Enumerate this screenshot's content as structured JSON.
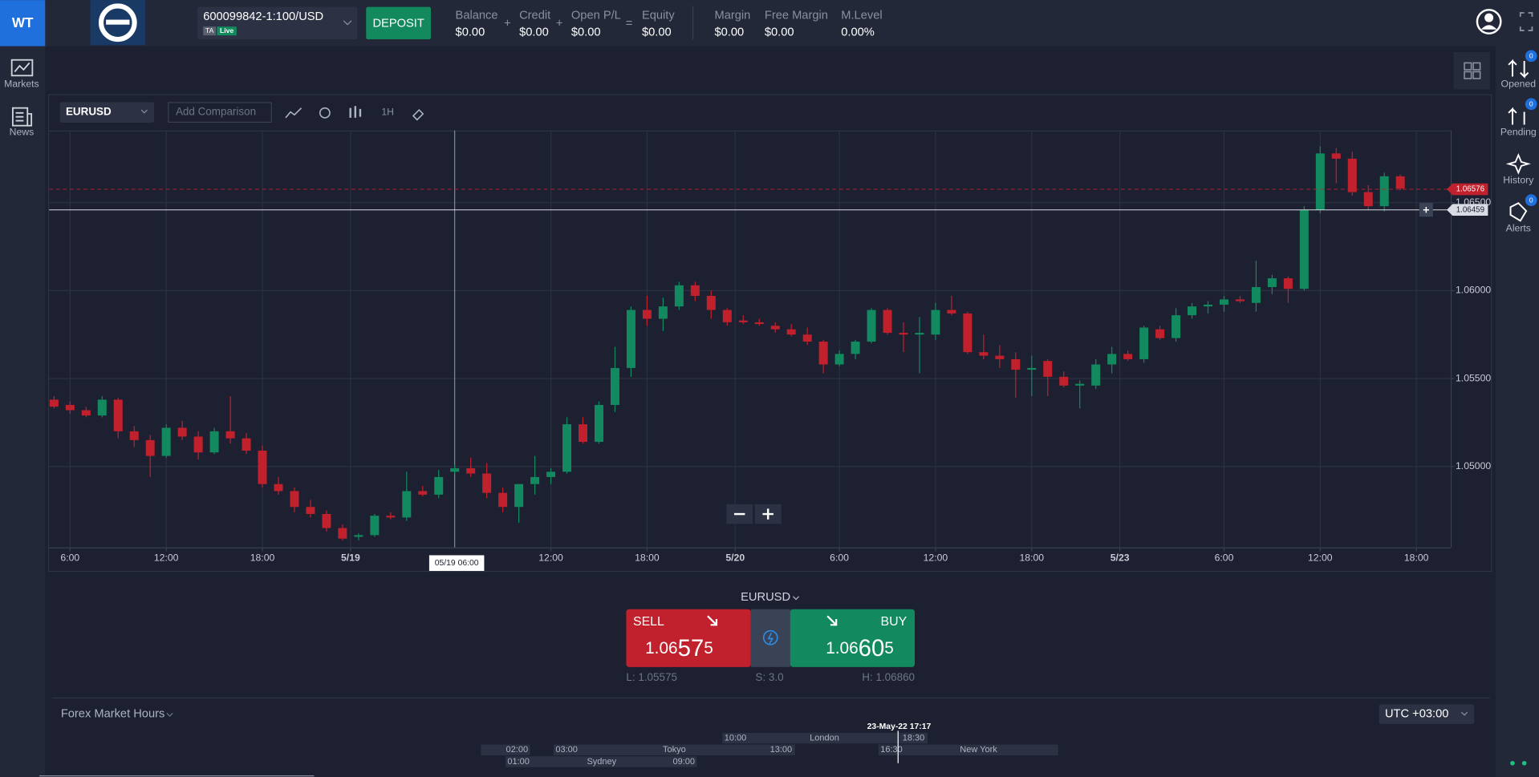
{
  "header": {
    "logo": "WT",
    "account": "600099842-1:100/USD",
    "badges": [
      "TA",
      "Live"
    ],
    "deposit": "DEPOSIT",
    "stats": [
      {
        "label": "Balance",
        "value": "$0.00"
      },
      {
        "label": "Credit",
        "value": "$0.00"
      },
      {
        "label": "Open P/L",
        "value": "$0.00"
      },
      {
        "label": "Equity",
        "value": "$0.00"
      },
      {
        "label": "Margin",
        "value": "$0.00"
      },
      {
        "label": "Free Margin",
        "value": "$0.00"
      },
      {
        "label": "M.Level",
        "value": "0.00%"
      }
    ],
    "operators": [
      "+",
      "+",
      "="
    ]
  },
  "left_nav": [
    "Markets",
    "News"
  ],
  "right_nav": [
    {
      "label": "Opened",
      "count": "0"
    },
    {
      "label": "Pending",
      "count": "0"
    },
    {
      "label": "History"
    },
    {
      "label": "Alerts",
      "count": "0"
    }
  ],
  "toolbar": {
    "symbol": "EURUSD",
    "comparison_placeholder": "Add Comparison",
    "interval": "1H"
  },
  "chart_data": {
    "type": "candlestick",
    "up_color": "#12895e",
    "down_color": "#c0212d",
    "grid": true,
    "x": [
      0,
      1,
      2,
      3,
      4,
      5,
      6,
      7,
      8,
      9,
      10,
      11,
      12,
      13,
      14,
      15,
      16,
      17,
      18,
      19,
      20,
      21,
      22,
      23,
      24,
      25,
      26,
      27,
      28,
      29,
      30,
      31,
      32,
      33,
      34,
      35,
      36,
      37,
      38,
      39,
      40,
      41,
      42,
      43,
      44,
      45,
      46,
      47,
      48,
      49,
      50,
      51,
      52,
      53,
      54,
      55,
      56,
      57,
      58,
      59,
      60,
      61,
      62,
      63,
      64,
      65,
      66,
      67,
      68,
      69,
      70,
      71,
      72,
      73,
      74,
      75,
      76,
      77,
      78,
      79,
      80,
      81,
      82,
      83,
      84
    ],
    "open": [
      1.0538,
      1.0535,
      1.0532,
      1.0529,
      1.0538,
      1.052,
      1.0515,
      1.0506,
      1.0522,
      1.0517,
      1.0508,
      1.052,
      1.0516,
      1.0509,
      1.049,
      1.0486,
      1.0477,
      1.0473,
      1.0465,
      1.046,
      1.0461,
      1.0472,
      1.0471,
      1.0486,
      1.0484,
      1.0497,
      1.0499,
      1.0496,
      1.0485,
      1.0477,
      1.049,
      1.0494,
      1.0497,
      1.0524,
      1.0514,
      1.0535,
      1.0556,
      1.0589,
      1.0584,
      1.0591,
      1.0603,
      1.0597,
      1.0589,
      1.0583,
      1.0582,
      1.058,
      1.0578,
      1.0575,
      1.0571,
      1.0558,
      1.0564,
      1.0571,
      1.0589,
      1.0576,
      1.0575,
      1.0575,
      1.0589,
      1.0587,
      1.0565,
      1.0563,
      1.0561,
      1.0555,
      1.056,
      1.0551,
      1.0546,
      1.0546,
      1.0558,
      1.0564,
      1.0561,
      1.0578,
      1.0573,
      1.0586,
      1.0591,
      1.0592,
      1.0595,
      1.0593,
      1.0602,
      1.0607,
      1.0601,
      1.0646,
      1.0678,
      1.0675,
      1.0656,
      1.0648,
      1.0665
    ],
    "high": [
      1.054,
      1.0537,
      1.0534,
      1.054,
      1.0539,
      1.0523,
      1.0518,
      1.0524,
      1.0526,
      1.052,
      1.0522,
      1.054,
      1.0519,
      1.0512,
      1.0494,
      1.0488,
      1.0481,
      1.0475,
      1.0467,
      1.0462,
      1.0473,
      1.0474,
      1.0497,
      1.0489,
      1.0498,
      1.0501,
      1.0505,
      1.0502,
      1.0488,
      1.049,
      1.0506,
      1.0499,
      1.0528,
      1.0528,
      1.0537,
      1.0568,
      1.0591,
      1.0597,
      1.0596,
      1.0605,
      1.0605,
      1.06,
      1.059,
      1.0586,
      1.0584,
      1.0582,
      1.0581,
      1.0579,
      1.0572,
      1.0566,
      1.0572,
      1.059,
      1.059,
      1.0582,
      1.0585,
      1.0593,
      1.0597,
      1.0588,
      1.0575,
      1.0569,
      1.0565,
      1.0563,
      1.0561,
      1.0554,
      1.0549,
      1.0561,
      1.0568,
      1.0566,
      1.058,
      1.058,
      1.059,
      1.0593,
      1.0594,
      1.0597,
      1.0597,
      1.0617,
      1.0609,
      1.0608,
      1.0648,
      1.0682,
      1.0681,
      1.0679,
      1.066,
      1.0667,
      1.0666
    ],
    "low": [
      1.0533,
      1.053,
      1.0528,
      1.0528,
      1.0516,
      1.0511,
      1.0494,
      1.0505,
      1.0515,
      1.0504,
      1.0507,
      1.0513,
      1.0507,
      1.0488,
      1.0484,
      1.0474,
      1.0471,
      1.0463,
      1.0458,
      1.0458,
      1.046,
      1.047,
      1.0469,
      1.0483,
      1.0482,
      1.0496,
      1.0494,
      1.0482,
      1.0474,
      1.0468,
      1.0484,
      1.049,
      1.0496,
      1.0513,
      1.0513,
      1.0531,
      1.0551,
      1.058,
      1.0577,
      1.0589,
      1.0594,
      1.0584,
      1.058,
      1.0581,
      1.058,
      1.0576,
      1.0574,
      1.0569,
      1.0553,
      1.0557,
      1.0561,
      1.057,
      1.0575,
      1.0565,
      1.0553,
      1.0572,
      1.0586,
      1.0564,
      1.0561,
      1.0556,
      1.0539,
      1.054,
      1.054,
      1.0545,
      1.0533,
      1.0544,
      1.0553,
      1.056,
      1.0559,
      1.0572,
      1.0571,
      1.0584,
      1.0587,
      1.0588,
      1.0593,
      1.0588,
      1.0598,
      1.0593,
      1.06,
      1.0644,
      1.0661,
      1.0654,
      1.0646,
      1.0645,
      1.0657
    ],
    "close": [
      1.0534,
      1.0532,
      1.0529,
      1.0538,
      1.052,
      1.0515,
      1.0506,
      1.0522,
      1.0517,
      1.0508,
      1.052,
      1.0516,
      1.0509,
      1.049,
      1.0486,
      1.0477,
      1.0473,
      1.0465,
      1.0459,
      1.0461,
      1.0472,
      1.0471,
      1.0486,
      1.0484,
      1.0494,
      1.0499,
      1.0496,
      1.0485,
      1.0477,
      1.049,
      1.0494,
      1.0497,
      1.0524,
      1.0514,
      1.0535,
      1.0556,
      1.0589,
      1.0584,
      1.0591,
      1.0603,
      1.0597,
      1.0589,
      1.0582,
      1.0582,
      1.0581,
      1.0578,
      1.0575,
      1.0571,
      1.0558,
      1.0564,
      1.0571,
      1.0589,
      1.0576,
      1.0575,
      1.0576,
      1.0589,
      1.0587,
      1.0565,
      1.0563,
      1.0561,
      1.0555,
      1.0556,
      1.0551,
      1.0546,
      1.0547,
      1.0558,
      1.0564,
      1.0561,
      1.0579,
      1.0573,
      1.0586,
      1.0591,
      1.0592,
      1.0595,
      1.0594,
      1.0602,
      1.0607,
      1.0601,
      1.0646,
      1.0678,
      1.0675,
      1.0656,
      1.0648,
      1.0665,
      1.0658
    ],
    "xlim": [
      -0.31,
      87.14
    ],
    "xticks": [
      {
        "value": 1,
        "label": "6:00"
      },
      {
        "value": 7,
        "label": "12:00"
      },
      {
        "value": 13,
        "label": "18:00"
      },
      {
        "value": 18.5,
        "label": "5/19"
      },
      {
        "value": 31,
        "label": "12:00"
      },
      {
        "value": 37,
        "label": "18:00"
      },
      {
        "value": 42.5,
        "label": "5/20"
      },
      {
        "value": 49,
        "label": "6:00"
      },
      {
        "value": 55,
        "label": "12:00"
      },
      {
        "value": 61,
        "label": "18:00"
      },
      {
        "value": 66.5,
        "label": "5/23"
      },
      {
        "value": 73,
        "label": "6:00"
      },
      {
        "value": 79,
        "label": "12:00"
      },
      {
        "value": 85,
        "label": "18:00"
      }
    ],
    "ylim": [
      1.0454,
      1.0691
    ],
    "yticks": [
      {
        "value": 1.05,
        "label": "1.05000"
      },
      {
        "value": 1.055,
        "label": "1.05500"
      },
      {
        "value": 1.06,
        "label": "1.06000"
      },
      {
        "value": 1.065,
        "label": "1.06500"
      }
    ],
    "price_lines": [
      {
        "value": 1.06576,
        "color": "#c0212d"
      },
      {
        "value": 1.06459,
        "color": "#d8dce4"
      }
    ],
    "crosshair": {
      "x": 25,
      "label": "05/19 06:00"
    }
  },
  "trade": {
    "symbol": "EURUSD",
    "sell": {
      "label": "SELL",
      "price": "1.06575"
    },
    "buy": {
      "label": "BUY",
      "price": "1.06605"
    },
    "low": "L: 1.05575",
    "spread": "S: 3.0",
    "high": "H: 1.06860"
  },
  "market_hours": {
    "title": "Forex Market Hours",
    "timezone": "UTC +03:00",
    "now": "23-May-22 17:17",
    "sessions": [
      {
        "name": "London",
        "open": "10:00",
        "close": "18:30"
      },
      {
        "close": "02:00"
      },
      {
        "name": "Tokyo",
        "open": "03:00",
        "close": "13:00"
      },
      {
        "name": "New York",
        "open": "16:30"
      },
      {
        "name": "Sydney",
        "open": "01:00",
        "close": "09:00"
      }
    ]
  }
}
